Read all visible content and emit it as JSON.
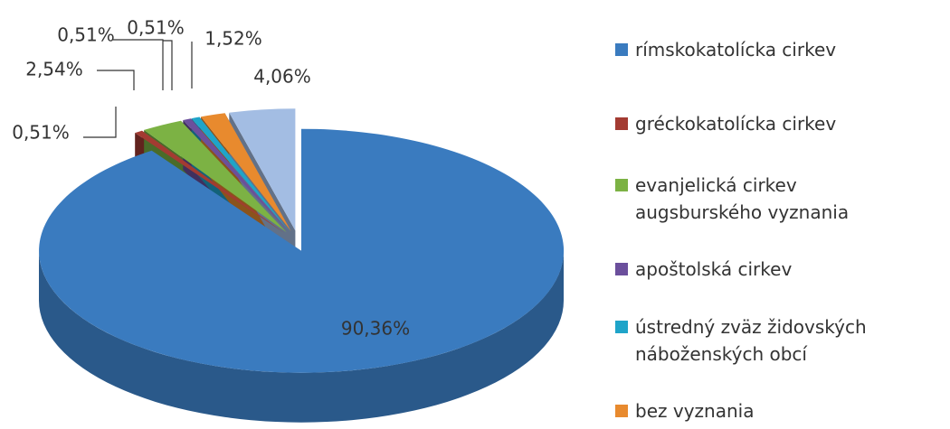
{
  "chart_data": {
    "type": "pie",
    "categories": [
      "rímskokatolícka cirkev",
      "gréckokatolícka cirkev",
      "evanjelická cirkev augsburského vyznania",
      "apoštolská cirkev",
      "ústredný zväz židovských náboženských obcí",
      "bez vyznania",
      null
    ],
    "values": [
      90.36,
      0.51,
      2.54,
      0.51,
      0.51,
      1.52,
      4.06
    ],
    "value_labels": [
      "90,36%",
      "0,51%",
      "2,54%",
      "0,51%",
      "0,51%",
      "1,52%",
      "4,06%"
    ],
    "colors": [
      "#3a7bbf",
      "#a33b32",
      "#7cb244",
      "#6b4f9c",
      "#1fa4c9",
      "#e88a2e",
      "#a3bde3"
    ],
    "legend": "right"
  }
}
